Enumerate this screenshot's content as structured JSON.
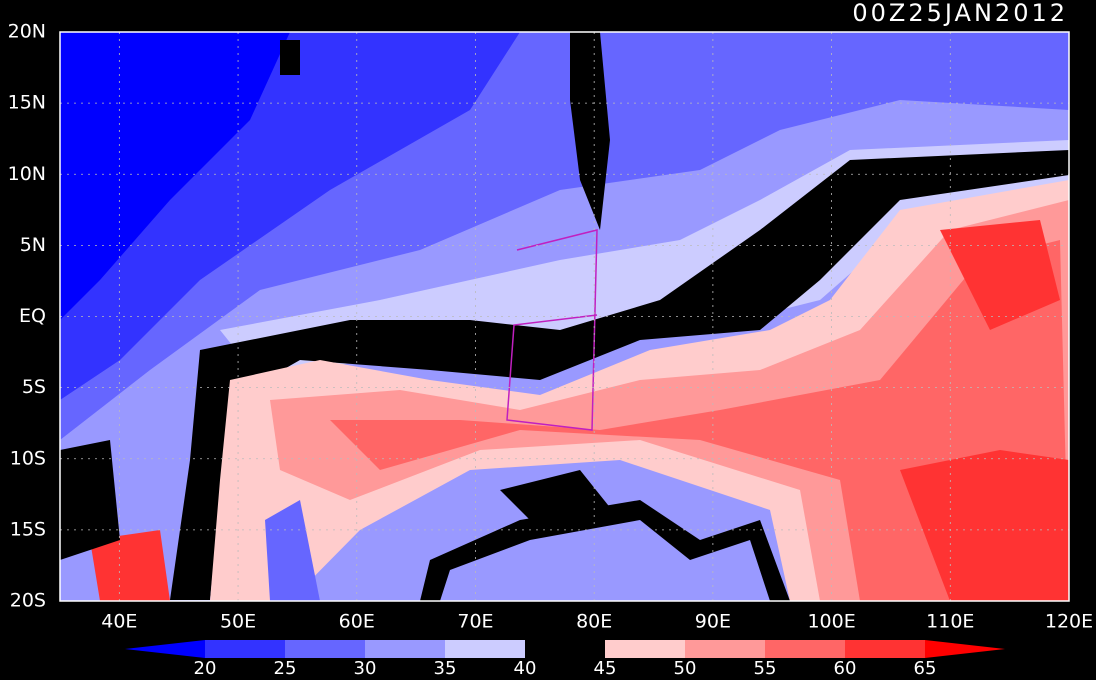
{
  "title": "00Z25JAN2012",
  "lat_labels": [
    "20N",
    "15N",
    "10N",
    "5N",
    "EQ",
    "5S",
    "10S",
    "15S",
    "20S"
  ],
  "lon_labels": [
    "40E",
    "50E",
    "60E",
    "70E",
    "80E",
    "90E",
    "100E",
    "110E",
    "120E"
  ],
  "colorbar": {
    "ticks": [
      20,
      25,
      30,
      35,
      40,
      45,
      50,
      55,
      60,
      65
    ],
    "colors": [
      "#0000ff",
      "#3333ff",
      "#6666ff",
      "#9999ff",
      "#ccccff",
      "#000000",
      "#ffcccc",
      "#ff9999",
      "#ff6666",
      "#ff3333",
      "#ff0000"
    ]
  }
}
